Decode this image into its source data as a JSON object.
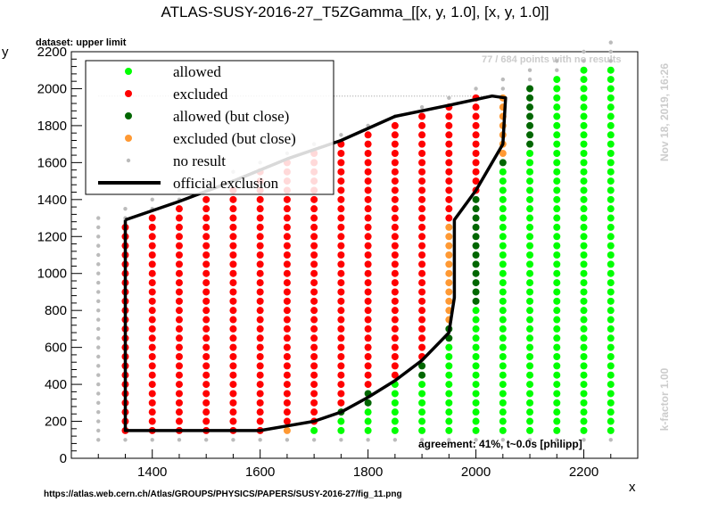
{
  "chart_data": {
    "type": "scatter",
    "title": "ATLAS-SUSY-2016-27_T5ZGamma_[[x, y, 1.0], [x, y, 1.0]]",
    "subtitle": "dataset: upper limit",
    "xlabel": "x",
    "ylabel": "y",
    "xlim": [
      1250,
      2300
    ],
    "ylim": [
      0,
      2200
    ],
    "x_ticks": [
      1400,
      1600,
      1800,
      2000,
      2200
    ],
    "y_ticks": [
      0,
      200,
      400,
      600,
      800,
      1000,
      1200,
      1400,
      1600,
      1800,
      2000,
      2200
    ],
    "grid": false,
    "legend_position": "top-left",
    "legend": [
      {
        "label": "allowed",
        "color": "#00ff00",
        "marker": "circle"
      },
      {
        "label": "excluded",
        "color": "#ff0000",
        "marker": "circle"
      },
      {
        "label": "allowed (but close)",
        "color": "#006600",
        "marker": "circle"
      },
      {
        "label": "excluded (but close)",
        "color": "#ff9933",
        "marker": "circle"
      },
      {
        "label": "no result",
        "color": "#bbbbbb",
        "marker": "small-circle"
      },
      {
        "label": "official exclusion",
        "color": "#000000",
        "marker": "line"
      }
    ],
    "grid_rows": {
      "x_start": 1300,
      "x_end": 2250,
      "x_step": 50,
      "y_start": 100,
      "y_step": 50
    },
    "columns": [
      {
        "x": 1300,
        "ymax": 1300,
        "excluded": [],
        "excluded_close": [],
        "allowed_close": [],
        "allowed": []
      },
      {
        "x": 1350,
        "ymax": 1350,
        "excluded": [
          [
            150,
            1250
          ]
        ],
        "excluded_close": [],
        "allowed_close": [],
        "allowed": []
      },
      {
        "x": 1400,
        "ymax": 1400,
        "excluded": [
          [
            150,
            1300
          ]
        ],
        "excluded_close": [],
        "allowed_close": [],
        "allowed": []
      },
      {
        "x": 1450,
        "ymax": 1450,
        "excluded": [
          [
            150,
            1350
          ]
        ],
        "excluded_close": [],
        "allowed_close": [],
        "allowed": []
      },
      {
        "x": 1500,
        "ymax": 1500,
        "excluded": [
          [
            150,
            1400
          ]
        ],
        "excluded_close": [],
        "allowed_close": [],
        "allowed": []
      },
      {
        "x": 1550,
        "ymax": 1550,
        "excluded": [
          [
            150,
            1450
          ]
        ],
        "excluded_close": [],
        "allowed_close": [],
        "allowed": []
      },
      {
        "x": 1600,
        "ymax": 1600,
        "excluded": [
          [
            150,
            1550
          ]
        ],
        "excluded_close": [],
        "allowed_close": [],
        "allowed": []
      },
      {
        "x": 1650,
        "ymax": 1650,
        "excluded": [
          [
            200,
            1600
          ]
        ],
        "excluded_close": [
          [
            150,
            150
          ]
        ],
        "allowed_close": [],
        "allowed": []
      },
      {
        "x": 1700,
        "ymax": 1700,
        "excluded": [
          [
            200,
            1650
          ]
        ],
        "excluded_close": [],
        "allowed_close": [],
        "allowed": [
          [
            150,
            150
          ]
        ]
      },
      {
        "x": 1750,
        "ymax": 1750,
        "excluded": [
          [
            300,
            1700
          ]
        ],
        "excluded_close": [],
        "allowed_close": [
          [
            250,
            250
          ]
        ],
        "allowed": [
          [
            150,
            200
          ]
        ]
      },
      {
        "x": 1800,
        "ymax": 1800,
        "excluded": [
          [
            400,
            1750
          ]
        ],
        "excluded_close": [],
        "allowed_close": [
          [
            300,
            350
          ]
        ],
        "allowed": [
          [
            150,
            250
          ]
        ]
      },
      {
        "x": 1850,
        "ymax": 1850,
        "excluded": [
          [
            450,
            1800
          ]
        ],
        "excluded_close": [],
        "allowed_close": [],
        "allowed": [
          [
            150,
            400
          ]
        ]
      },
      {
        "x": 1900,
        "ymax": 1900,
        "excluded": [
          [
            550,
            1850
          ]
        ],
        "excluded_close": [],
        "allowed_close": [
          [
            450,
            500
          ]
        ],
        "allowed": [
          [
            150,
            400
          ]
        ]
      },
      {
        "x": 1950,
        "ymax": 1950,
        "excluded": [
          [
            1300,
            1900
          ]
        ],
        "excluded_close": [
          [
            750,
            1250
          ]
        ],
        "allowed_close": [
          [
            650,
            700
          ]
        ],
        "allowed": [
          [
            150,
            600
          ]
        ]
      },
      {
        "x": 2000,
        "ymax": 2000,
        "excluded": [
          [
            1450,
            1950
          ]
        ],
        "excluded_close": [],
        "allowed_close": [
          [
            850,
            1400
          ]
        ],
        "allowed": [
          [
            150,
            800
          ]
        ]
      },
      {
        "x": 2050,
        "ymax": 2050,
        "excluded": [],
        "excluded_close": [
          [
            1650,
            1950
          ]
        ],
        "allowed_close": [
          [
            1600,
            1600
          ]
        ],
        "allowed": [
          [
            150,
            1550
          ]
        ]
      },
      {
        "x": 2100,
        "ymax": 2100,
        "excluded": [],
        "excluded_close": [],
        "allowed_close": [
          [
            1700,
            2000
          ]
        ],
        "allowed": [
          [
            150,
            1650
          ]
        ]
      },
      {
        "x": 2150,
        "ymax": 2150,
        "excluded": [],
        "excluded_close": [],
        "allowed_close": [],
        "allowed": [
          [
            150,
            2050
          ]
        ]
      },
      {
        "x": 2200,
        "ymax": 2200,
        "excluded": [],
        "excluded_close": [],
        "allowed_close": [],
        "allowed": [
          [
            150,
            2100
          ]
        ]
      },
      {
        "x": 2250,
        "ymax": 2250,
        "excluded": [],
        "excluded_close": [],
        "allowed_close": [],
        "allowed": [
          [
            150,
            2100
          ]
        ]
      }
    ],
    "official_exclusion": [
      [
        1350,
        1290
      ],
      [
        1350,
        150
      ],
      [
        1600,
        150
      ],
      [
        1650,
        175
      ],
      [
        1700,
        200
      ],
      [
        1750,
        250
      ],
      [
        1800,
        330
      ],
      [
        1850,
        420
      ],
      [
        1900,
        530
      ],
      [
        1950,
        680
      ],
      [
        1960,
        870
      ],
      [
        1960,
        1290
      ],
      [
        2000,
        1450
      ],
      [
        2050,
        1700
      ],
      [
        2055,
        1950
      ],
      [
        2030,
        1960
      ],
      [
        1950,
        1910
      ],
      [
        1850,
        1850
      ],
      [
        1750,
        1720
      ],
      [
        1650,
        1620
      ],
      [
        1550,
        1500
      ],
      [
        1450,
        1390
      ],
      [
        1350,
        1290
      ]
    ],
    "reference_line_y": 1960
  },
  "annotations": {
    "no_result_count": "77 / 684 points with no results",
    "agreement": "agreement: 41%, t~0.0s [philipp]",
    "url": "https://atlas.web.cern.ch/Atlas/GROUPS/PHYSICS/PAPERS/SUSY-2016-27/fig_11.png",
    "date": "Nov 18, 2019, 16:26",
    "k_factor": "k-factor 1.00"
  }
}
